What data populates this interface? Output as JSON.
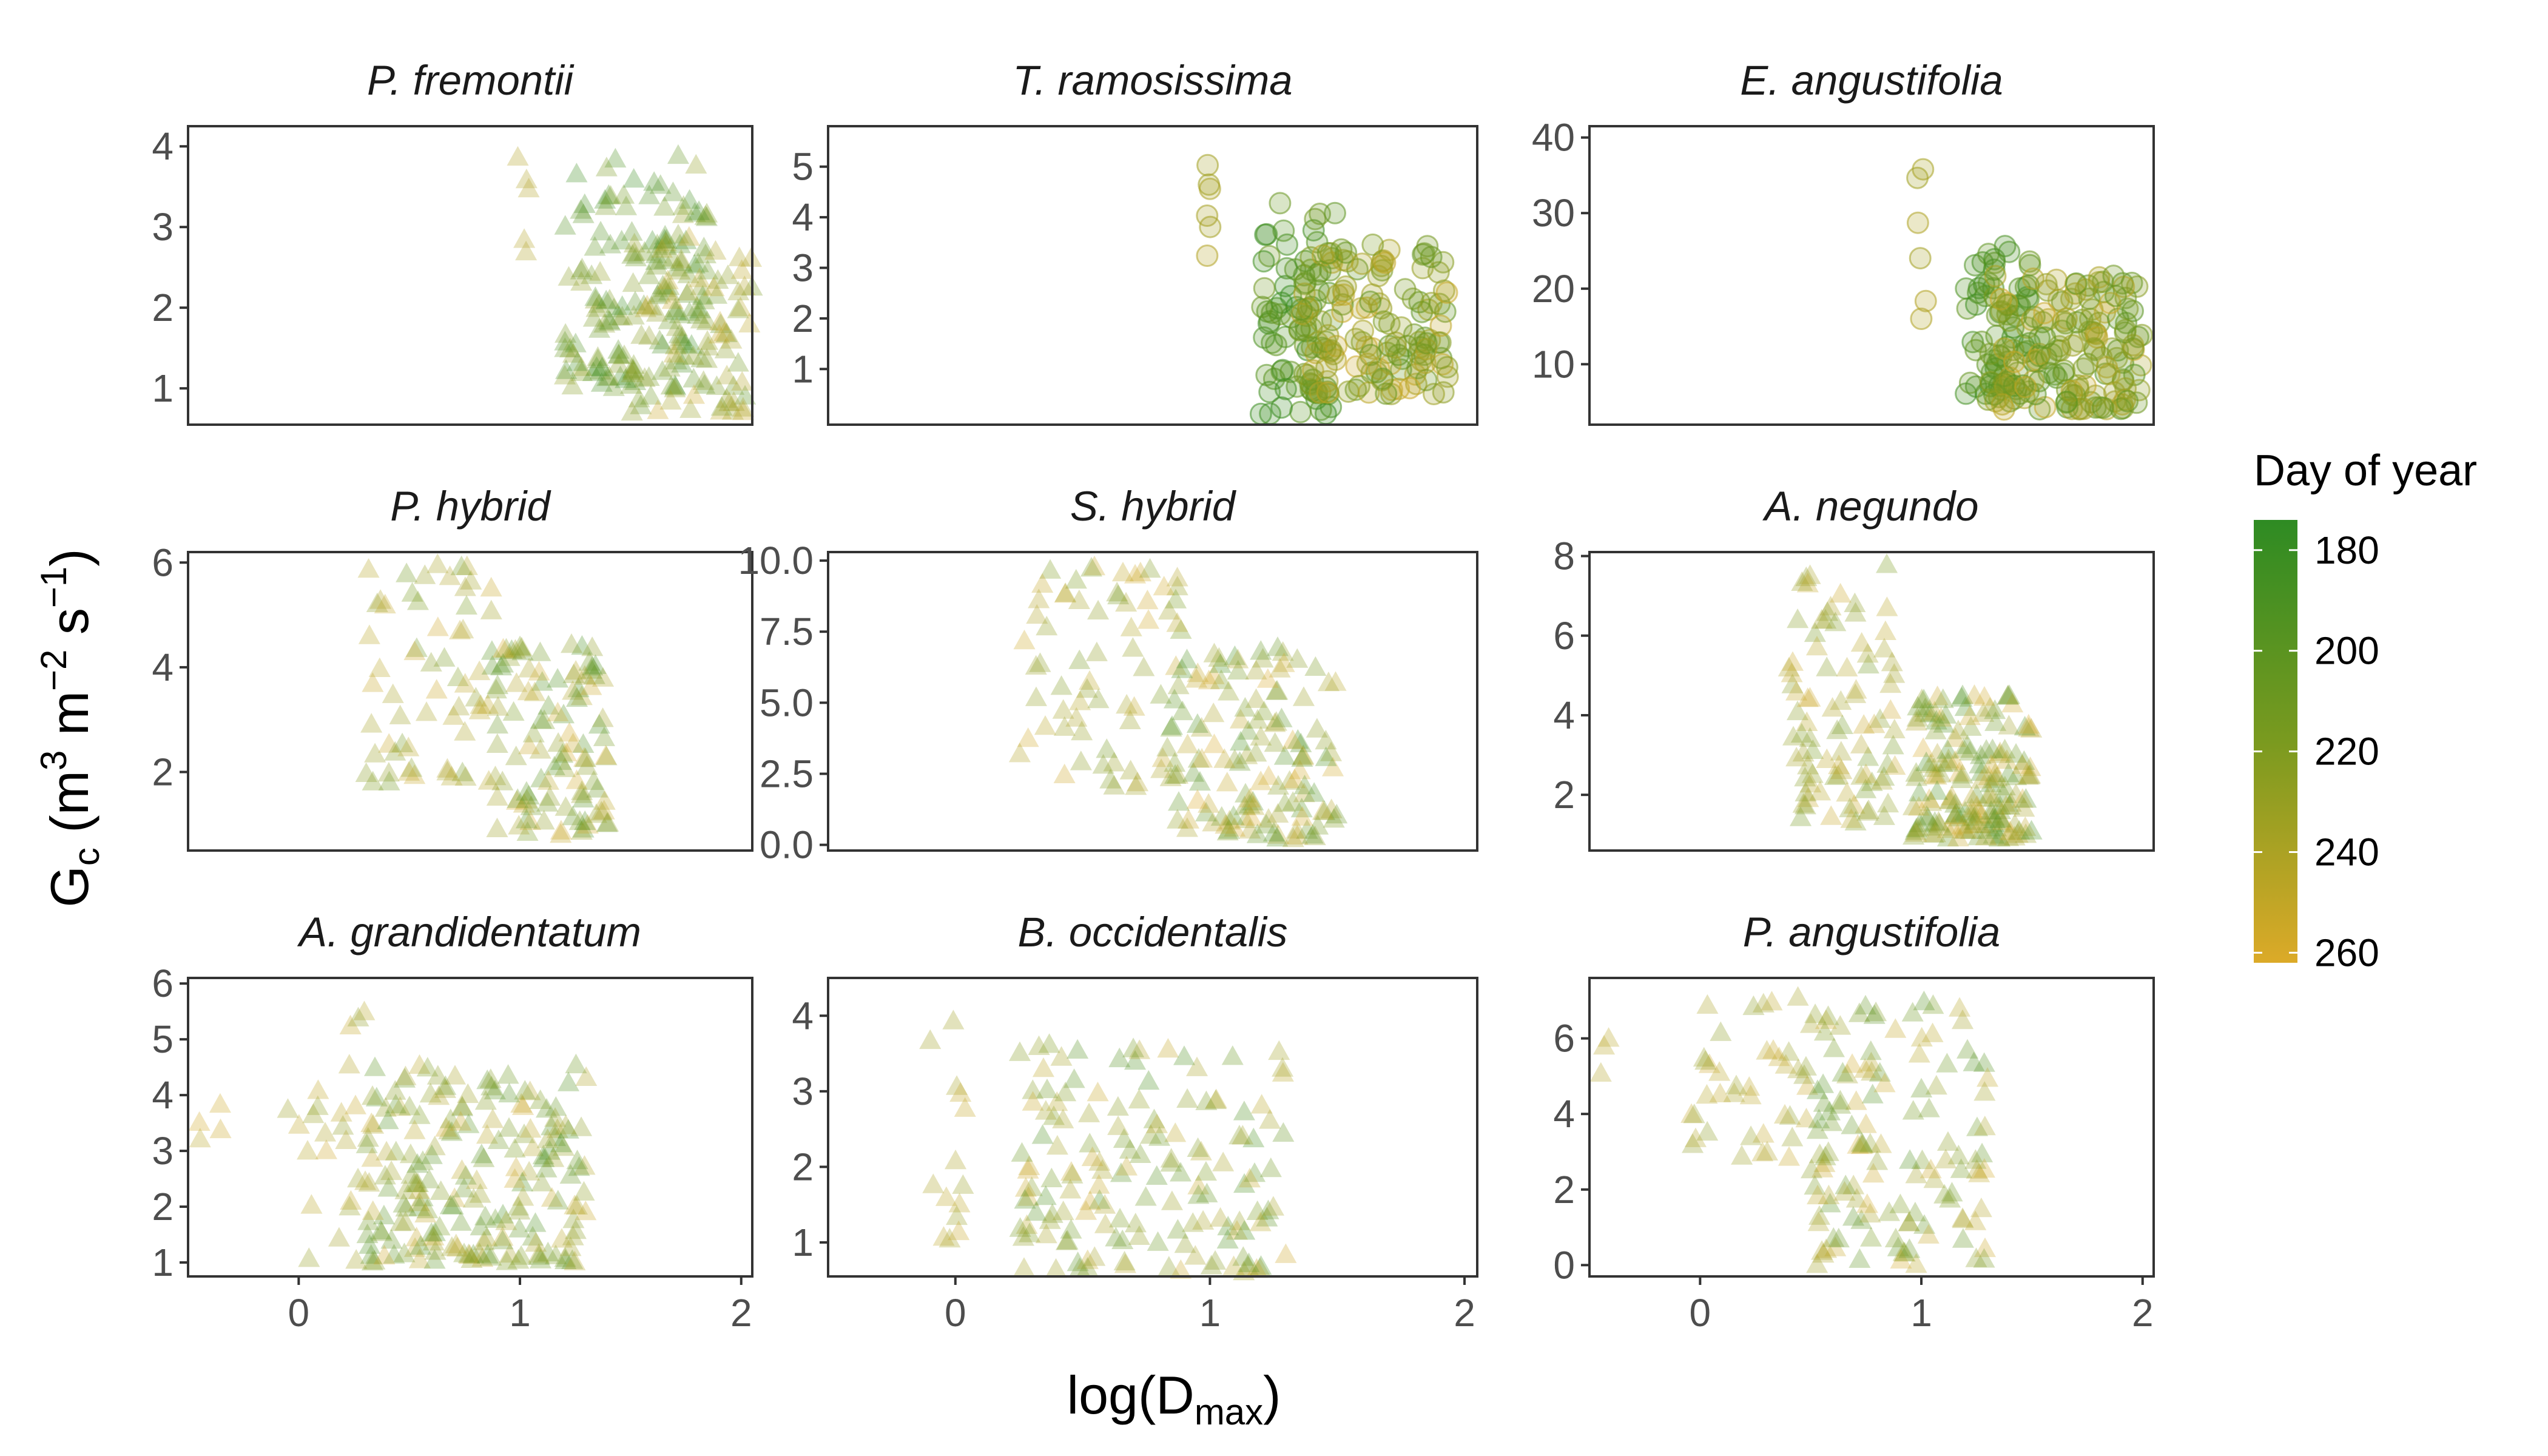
{
  "figure": {
    "ylabel": {
      "base": "G",
      "sub": "c",
      "rest": " (m",
      "sup1": "3",
      "mid": " m",
      "sup2": "−2",
      "s": " s",
      "sup3": "−1",
      "end": ")"
    },
    "xlabel": {
      "base": "log(D",
      "sub": "max",
      "end": ")"
    }
  },
  "legend": {
    "title": "Day of year",
    "ticks": [
      "180",
      "200",
      "220",
      "240",
      "260"
    ],
    "tick_values": [
      180,
      200,
      220,
      240,
      260
    ],
    "range": [
      174,
      262
    ],
    "colors": {
      "low": "#2e8b23",
      "mid": "#7a9a1f",
      "high": "#dcaa28"
    }
  },
  "chart_data": [
    {
      "type": "scatter",
      "title": "P. fremontii",
      "marker": "triangle",
      "xlim": [
        -0.5,
        2.05
      ],
      "ylim": [
        0.55,
        4.25
      ],
      "yticks": [
        1,
        2,
        3,
        4
      ],
      "ytick_labels": [
        "1",
        "2",
        "3",
        "4"
      ],
      "xticks": [
        0,
        1,
        2
      ],
      "xtick_labels": [
        "0",
        "1",
        "2"
      ],
      "show_xticks": false,
      "clusters": [
        {
          "x": [
            0.98,
            1.04
          ],
          "y": [
            2.5,
            4.1
          ],
          "doy": [
            240,
            245
          ],
          "n": 5
        },
        {
          "x": [
            1.2,
            1.85
          ],
          "y": [
            1.0,
            3.9
          ],
          "doy": [
            180,
            230
          ],
          "n": 150
        },
        {
          "x": [
            1.5,
            2.05
          ],
          "y": [
            0.7,
            2.9
          ],
          "doy": [
            200,
            255
          ],
          "n": 80
        }
      ]
    },
    {
      "type": "scatter",
      "title": "T. ramosissima",
      "marker": "circle",
      "xlim": [
        -0.5,
        2.05
      ],
      "ylim": [
        -0.1,
        5.8
      ],
      "yticks": [
        1,
        2,
        3,
        4,
        5
      ],
      "ytick_labels": [
        "1",
        "2",
        "3",
        "4",
        "5"
      ],
      "xticks": [
        0,
        1,
        2
      ],
      "xtick_labels": [
        "0",
        "1",
        "2"
      ],
      "show_xticks": false,
      "clusters": [
        {
          "x": [
            0.98,
            1.02
          ],
          "y": [
            3.1,
            5.5
          ],
          "doy": [
            235,
            245
          ],
          "n": 6
        },
        {
          "x": [
            1.2,
            1.5
          ],
          "y": [
            0.1,
            4.3
          ],
          "doy": [
            180,
            215
          ],
          "n": 70
        },
        {
          "x": [
            1.35,
            1.95
          ],
          "y": [
            0.5,
            3.5
          ],
          "doy": [
            200,
            255
          ],
          "n": 140
        }
      ]
    },
    {
      "type": "scatter",
      "title": "E. angustifolia",
      "marker": "circle",
      "xlim": [
        -0.5,
        2.05
      ],
      "ylim": [
        2,
        41.5
      ],
      "yticks": [
        10,
        20,
        30,
        40
      ],
      "ytick_labels": [
        "10",
        "20",
        "30",
        "40"
      ],
      "xticks": [
        0,
        1,
        2
      ],
      "xtick_labels": [
        "0",
        "1",
        "2"
      ],
      "show_xticks": false,
      "clusters": [
        {
          "x": [
            0.98,
            1.02
          ],
          "y": [
            16,
            40
          ],
          "doy": [
            235,
            245
          ],
          "n": 6
        },
        {
          "x": [
            1.2,
            1.55
          ],
          "y": [
            6,
            26
          ],
          "doy": [
            180,
            210
          ],
          "n": 60
        },
        {
          "x": [
            1.3,
            2.0
          ],
          "y": [
            4,
            22
          ],
          "doy": [
            195,
            255
          ],
          "n": 160
        }
      ]
    },
    {
      "type": "scatter",
      "title": "P. hybrid",
      "marker": "triangle",
      "xlim": [
        -0.5,
        2.05
      ],
      "ylim": [
        0.5,
        6.2
      ],
      "yticks": [
        2,
        4,
        6
      ],
      "ytick_labels": [
        "2",
        "4",
        "6"
      ],
      "xticks": [
        0,
        1,
        2
      ],
      "xtick_labels": [
        "0",
        "1",
        "2"
      ],
      "show_xticks": false,
      "clusters": [
        {
          "x": [
            0.3,
            0.9
          ],
          "y": [
            1.8,
            6.0
          ],
          "doy": [
            210,
            255
          ],
          "n": 60
        },
        {
          "x": [
            0.85,
            1.4
          ],
          "y": [
            0.8,
            4.5
          ],
          "doy": [
            190,
            260
          ],
          "n": 110
        }
      ]
    },
    {
      "type": "scatter",
      "title": "S. hybrid",
      "marker": "triangle",
      "xlim": [
        -0.5,
        2.05
      ],
      "ylim": [
        -0.2,
        10.3
      ],
      "yticks": [
        0,
        2.5,
        5,
        7.5,
        10
      ],
      "ytick_labels": [
        "0.0",
        "2.5",
        "5.0",
        "7.5",
        "10.0"
      ],
      "xticks": [
        0,
        1,
        2
      ],
      "xtick_labels": [
        "0",
        "1",
        "2"
      ],
      "show_xticks": false,
      "clusters": [
        {
          "x": [
            0.25,
            0.9
          ],
          "y": [
            2.0,
            10.0
          ],
          "doy": [
            215,
            258
          ],
          "n": 70
        },
        {
          "x": [
            0.85,
            1.5
          ],
          "y": [
            0.2,
            7.0
          ],
          "doy": [
            190,
            262
          ],
          "n": 130
        }
      ]
    },
    {
      "type": "scatter",
      "title": "A. negundo",
      "marker": "triangle",
      "xlim": [
        -0.5,
        2.05
      ],
      "ylim": [
        0.6,
        8.1
      ],
      "yticks": [
        2,
        4,
        6,
        8
      ],
      "ytick_labels": [
        "2",
        "4",
        "6",
        "8"
      ],
      "xticks": [
        0,
        1,
        2
      ],
      "xtick_labels": [
        "0",
        "1",
        "2"
      ],
      "show_xticks": false,
      "clusters": [
        {
          "x": [
            0.4,
            0.9
          ],
          "y": [
            1.3,
            7.8
          ],
          "doy": [
            210,
            255
          ],
          "n": 90
        },
        {
          "x": [
            0.95,
            1.5
          ],
          "y": [
            0.9,
            4.5
          ],
          "doy": [
            190,
            262
          ],
          "n": 170
        }
      ]
    },
    {
      "type": "scatter",
      "title": "A. grandidentatum",
      "marker": "triangle",
      "xlim": [
        -0.5,
        2.05
      ],
      "ylim": [
        0.75,
        6.1
      ],
      "yticks": [
        1,
        2,
        3,
        4,
        5,
        6
      ],
      "ytick_labels": [
        "1",
        "2",
        "3",
        "4",
        "5",
        "6"
      ],
      "xticks": [
        0,
        1,
        2
      ],
      "xtick_labels": [
        "0",
        "1",
        "2"
      ],
      "show_xticks": true,
      "clusters": [
        {
          "x": [
            -0.45,
            -0.35
          ],
          "y": [
            3.2,
            4.0
          ],
          "doy": [
            245,
            258
          ],
          "n": 4
        },
        {
          "x": [
            -0.05,
            0.35
          ],
          "y": [
            1.0,
            5.8
          ],
          "doy": [
            225,
            255
          ],
          "n": 25
        },
        {
          "x": [
            0.3,
            1.3
          ],
          "y": [
            1.0,
            4.6
          ],
          "doy": [
            190,
            255
          ],
          "n": 200
        }
      ]
    },
    {
      "type": "scatter",
      "title": "B. occidentalis",
      "marker": "triangle",
      "xlim": [
        -0.5,
        2.05
      ],
      "ylim": [
        0.55,
        4.5
      ],
      "yticks": [
        1,
        2,
        3,
        4
      ],
      "ytick_labels": [
        "1",
        "2",
        "3",
        "4"
      ],
      "xticks": [
        0,
        1,
        2
      ],
      "xtick_labels": [
        "0",
        "1",
        "2"
      ],
      "show_xticks": true,
      "clusters": [
        {
          "x": [
            -0.1,
            0.05
          ],
          "y": [
            1.0,
            4.3
          ],
          "doy": [
            230,
            255
          ],
          "n": 14
        },
        {
          "x": [
            0.25,
            1.3
          ],
          "y": [
            0.6,
            3.7
          ],
          "doy": [
            190,
            255
          ],
          "n": 150
        }
      ]
    },
    {
      "type": "scatter",
      "title": "P. angustifolia",
      "marker": "triangle",
      "xlim": [
        -0.5,
        2.05
      ],
      "ylim": [
        -0.3,
        7.6
      ],
      "yticks": [
        0,
        2,
        4,
        6
      ],
      "ytick_labels": [
        "0",
        "2",
        "4",
        "6"
      ],
      "xticks": [
        0,
        1,
        2
      ],
      "xtick_labels": [
        "0",
        "1",
        "2"
      ],
      "show_xticks": true,
      "clusters": [
        {
          "x": [
            -0.45,
            -0.4
          ],
          "y": [
            4.0,
            6.5
          ],
          "doy": [
            240,
            250
          ],
          "n": 3
        },
        {
          "x": [
            -0.05,
            0.5
          ],
          "y": [
            2.8,
            7.5
          ],
          "doy": [
            225,
            255
          ],
          "n": 40
        },
        {
          "x": [
            0.5,
            1.3
          ],
          "y": [
            0.0,
            7.0
          ],
          "doy": [
            195,
            258
          ],
          "n": 130
        }
      ]
    }
  ]
}
